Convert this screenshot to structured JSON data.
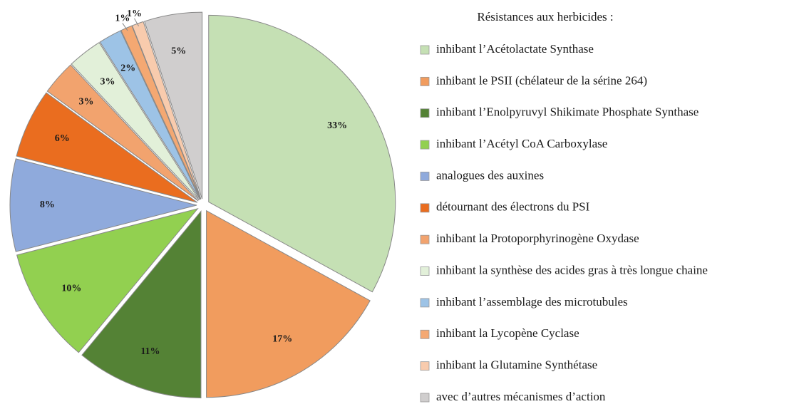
{
  "chart_data": {
    "type": "pie",
    "legend_title": "Résistances aux herbicides :",
    "categories": [
      "inhibant l’Acétolactate Synthase",
      "inhibant le PSII (chélateur de la sérine 264)",
      "inhibant l’Enolpyruvyl Shikimate Phosphate Synthase",
      "inhibant l’Acétyl CoA Carboxylase",
      "analogues des auxines",
      "détournant des électrons du PSI",
      "inhibant la Protoporphyrinogène Oxydase",
      "inhibant la synthèse des acides gras à très longue chaine",
      "inhibant l’assemblage des microtubules",
      "inhibant la Lycopène Cyclase",
      "inhibant la Glutamine Synthétase",
      "avec d’autres mécanismes d’action"
    ],
    "values": [
      33,
      17,
      11,
      10,
      8,
      6,
      3,
      3,
      2,
      1,
      1,
      5
    ],
    "value_labels": [
      "33%",
      "17%",
      "11%",
      "10%",
      "8%",
      "6%",
      "3%",
      "3%",
      "2%",
      "1%",
      "1%",
      "5%"
    ],
    "colors": [
      "#c5e0b4",
      "#f19c5e",
      "#548235",
      "#92d050",
      "#8faadc",
      "#ea6d1f",
      "#f2a36e",
      "#e2f0d9",
      "#9dc3e6",
      "#f4a872",
      "#f8cbad",
      "#d0cece"
    ],
    "legend": "right"
  }
}
